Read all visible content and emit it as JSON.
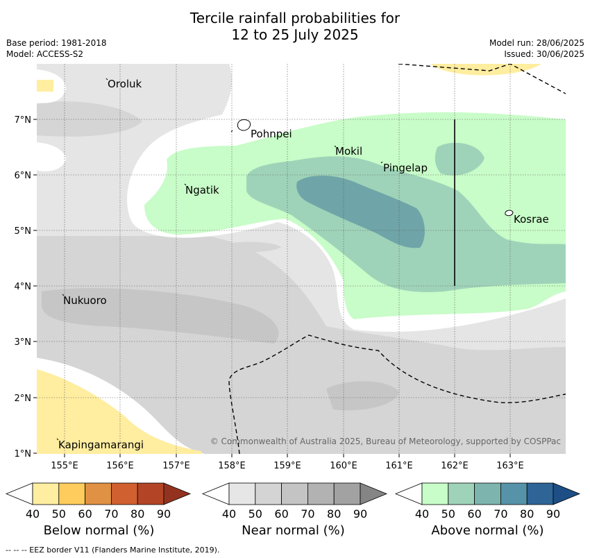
{
  "title_line1": "Tercile rainfall probabilities for",
  "title_line2": "12 to 25 July 2025",
  "base_period": "Base period: 1981-2018",
  "model": "Model: ACCESS-S2",
  "model_run": "Model run: 28/06/2025",
  "issued": "Issued: 30/06/2025",
  "copyright": "© Commonwealth of Australia 2025, Bureau of Meteorology, supported by COSPPac",
  "lat_labels": [
    "7°N",
    "6°N",
    "5°N",
    "4°N",
    "3°N",
    "2°N",
    "1°N"
  ],
  "lon_labels": [
    "155°E",
    "156°E",
    "157°E",
    "158°E",
    "159°E",
    "160°E",
    "161°E",
    "162°E",
    "163°E"
  ],
  "places": [
    {
      "name": "Oroluk"
    },
    {
      "name": "Pohnpei"
    },
    {
      "name": "Mokil"
    },
    {
      "name": "Pingelap"
    },
    {
      "name": "Ngatik"
    },
    {
      "name": "Kosrae"
    },
    {
      "name": "Nukuoro"
    },
    {
      "name": "Kapingamarangi"
    }
  ],
  "colorbars": [
    {
      "title": "Below normal (%)",
      "ticks": [
        "40",
        "50",
        "60",
        "70",
        "80",
        "90"
      ],
      "colors": [
        "#ffffff",
        "#ffeda0",
        "#fecc5c",
        "#e09143",
        "#d0602f",
        "#b34526",
        "#93331f"
      ]
    },
    {
      "title": "Near normal (%)",
      "ticks": [
        "40",
        "50",
        "60",
        "70",
        "80",
        "90"
      ],
      "colors": [
        "#ffffff",
        "#e6e6e6",
        "#d4d4d4",
        "#c4c4c4",
        "#b2b2b2",
        "#a2a2a2",
        "#858585"
      ]
    },
    {
      "title": "Above normal (%)",
      "ticks": [
        "40",
        "50",
        "60",
        "70",
        "80",
        "90"
      ],
      "colors": [
        "#ffffff",
        "#c8fcc8",
        "#9fd3b9",
        "#7eb4ae",
        "#5693a8",
        "#2f6497",
        "#1d4e85"
      ]
    }
  ],
  "footer": "--  --  -- EEZ border V11 (Flanders Marine Institute, 2019)."
}
